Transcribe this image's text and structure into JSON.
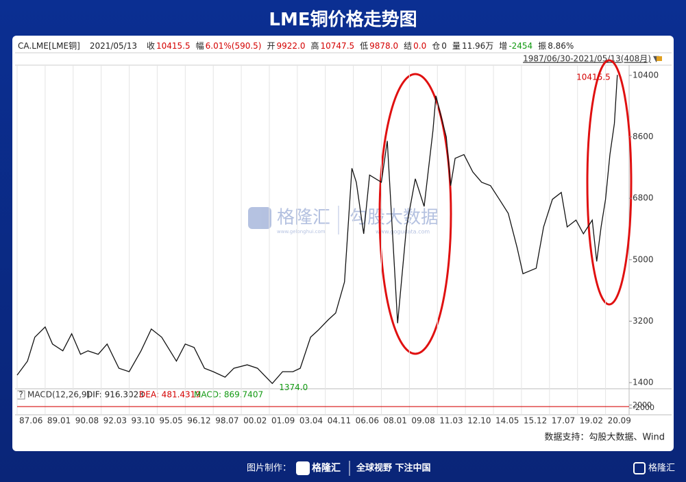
{
  "chart_data": {
    "type": "line",
    "title": "LME铜价格走势图",
    "quote": [
      {
        "label": "CA.LME[LME铜]",
        "color": "#222"
      },
      {
        "label": "2021/05/13",
        "color": "#222"
      },
      {
        "label": "收",
        "value": "10415.5",
        "color": "#d40000"
      },
      {
        "label": "幅",
        "value": "6.01%(590.5)",
        "color": "#d40000"
      },
      {
        "label": "开",
        "value": "9922.0",
        "color": "#d40000"
      },
      {
        "label": "高",
        "value": "10747.5",
        "color": "#d40000"
      },
      {
        "label": "低",
        "value": "9878.0",
        "color": "#d40000"
      },
      {
        "label": "结",
        "value": "0.0",
        "color": "#d40000"
      },
      {
        "label": "仓",
        "value": "0",
        "color": "#222"
      },
      {
        "label": "量",
        "value": "11.96万",
        "color": "#222"
      },
      {
        "label": "增",
        "value": "-2454",
        "color": "#119911"
      },
      {
        "label": "振",
        "value": "8.86%",
        "color": "#222"
      }
    ],
    "range_label": "1987/06/30-2021/05/13(408月)",
    "x": [
      "1987-06",
      "1988-01",
      "1988-06",
      "1989-01",
      "1989-06",
      "1990-01",
      "1990-07",
      "1991-01",
      "1991-06",
      "1992-01",
      "1992-07",
      "1993-03",
      "1993-10",
      "1994-06",
      "1995-01",
      "1995-08",
      "1996-06",
      "1996-12",
      "1997-06",
      "1998-01",
      "1998-07",
      "1999-03",
      "1999-09",
      "2000-06",
      "2001-01",
      "2001-11",
      "2002-06",
      "2003-01",
      "2003-06",
      "2004-01",
      "2004-06",
      "2005-01",
      "2005-06",
      "2005-12",
      "2006-05",
      "2006-08",
      "2007-01",
      "2007-05",
      "2008-01",
      "2008-05",
      "2008-12",
      "2009-06",
      "2009-12",
      "2010-06",
      "2010-12",
      "2011-02",
      "2011-09",
      "2011-12",
      "2012-03",
      "2012-09",
      "2013-03",
      "2013-09",
      "2014-03",
      "2014-09",
      "2015-03",
      "2015-09",
      "2016-01",
      "2016-10",
      "2017-03",
      "2017-09",
      "2018-03",
      "2018-07",
      "2019-01",
      "2019-06",
      "2019-12",
      "2020-03",
      "2020-06",
      "2020-09",
      "2020-12",
      "2021-03",
      "2021-05"
    ],
    "series": [
      {
        "name": "CA.LME",
        "color": "#111111",
        "values": [
          1620,
          2030,
          2730,
          3030,
          2530,
          2330,
          2830,
          2230,
          2330,
          2230,
          2530,
          1820,
          1720,
          2330,
          2970,
          2730,
          2030,
          2530,
          2430,
          1820,
          1720,
          1560,
          1820,
          1920,
          1820,
          1374,
          1720,
          1720,
          1820,
          2730,
          2930,
          3240,
          3440,
          4350,
          7680,
          7270,
          5760,
          7480,
          7270,
          8480,
          3140,
          5960,
          7370,
          6560,
          8790,
          9800,
          8600,
          7170,
          7970,
          8080,
          7570,
          7270,
          7170,
          6770,
          6360,
          5360,
          4590,
          4750,
          5960,
          6770,
          6970,
          5960,
          6160,
          5760,
          6160,
          4950,
          5960,
          6770,
          8080,
          8990,
          10415.5
        ]
      }
    ],
    "annotations": [
      {
        "label": "10415.5",
        "x": "2021-05",
        "y": 10415.5,
        "color": "#d40000"
      },
      {
        "label": "1374.0",
        "x": "2001-11",
        "y": 1374,
        "color": "#119911"
      }
    ],
    "xlim": [
      "1987-06",
      "2022-01"
    ],
    "xticks": [
      {
        "value": "1987-06",
        "label": "87.06"
      },
      {
        "value": "1989-01",
        "label": "89.01"
      },
      {
        "value": "1990-08",
        "label": "90.08"
      },
      {
        "value": "1992-03",
        "label": "92.03"
      },
      {
        "value": "1993-10",
        "label": "93.10"
      },
      {
        "value": "1995-05",
        "label": "95.05"
      },
      {
        "value": "1996-12",
        "label": "96.12"
      },
      {
        "value": "1998-07",
        "label": "98.07"
      },
      {
        "value": "2000-02",
        "label": "00.02"
      },
      {
        "value": "2001-09",
        "label": "01.09"
      },
      {
        "value": "2003-04",
        "label": "03.04"
      },
      {
        "value": "2004-11",
        "label": "04.11"
      },
      {
        "value": "2006-06",
        "label": "06.06"
      },
      {
        "value": "2008-01",
        "label": "08.01"
      },
      {
        "value": "2009-08",
        "label": "09.08"
      },
      {
        "value": "2011-03",
        "label": "11.03"
      },
      {
        "value": "2012-10",
        "label": "12.10"
      },
      {
        "value": "2014-05",
        "label": "14.05"
      },
      {
        "value": "2015-12",
        "label": "15.12"
      },
      {
        "value": "2017-07",
        "label": "17.07"
      },
      {
        "value": "2019-02",
        "label": "19.02"
      },
      {
        "value": "2020-09",
        "label": "20.09"
      }
    ],
    "ylim": [
      1220,
      10700
    ],
    "yticks": [
      1400,
      3200,
      5000,
      6800,
      8600,
      10400
    ],
    "grid": "x",
    "macd": {
      "help": "?",
      "title": "MACD(12,26,9)",
      "dif": "DIF: 916.3023",
      "dea": "DEA: 481.4319",
      "macd": "MACD: 869.7407",
      "dif_color": "#222",
      "dea_color": "#d40000",
      "macd_color": "#119911",
      "ylim": [
        -9000,
        9000
      ],
      "yticks": [
        2000,
        -2000
      ]
    },
    "source": "数据支持：勾股大数据、Wind",
    "watermark": {
      "brand": "格隆汇",
      "brand_url": "www.gelonghui.com",
      "data": "勾股大数据",
      "data_url": "www.gogudata.com"
    },
    "footer": {
      "made_by": "图片制作：",
      "brand": "格隆汇",
      "slogan": "全球视野 下注中国",
      "corner": "格隆汇"
    }
  }
}
